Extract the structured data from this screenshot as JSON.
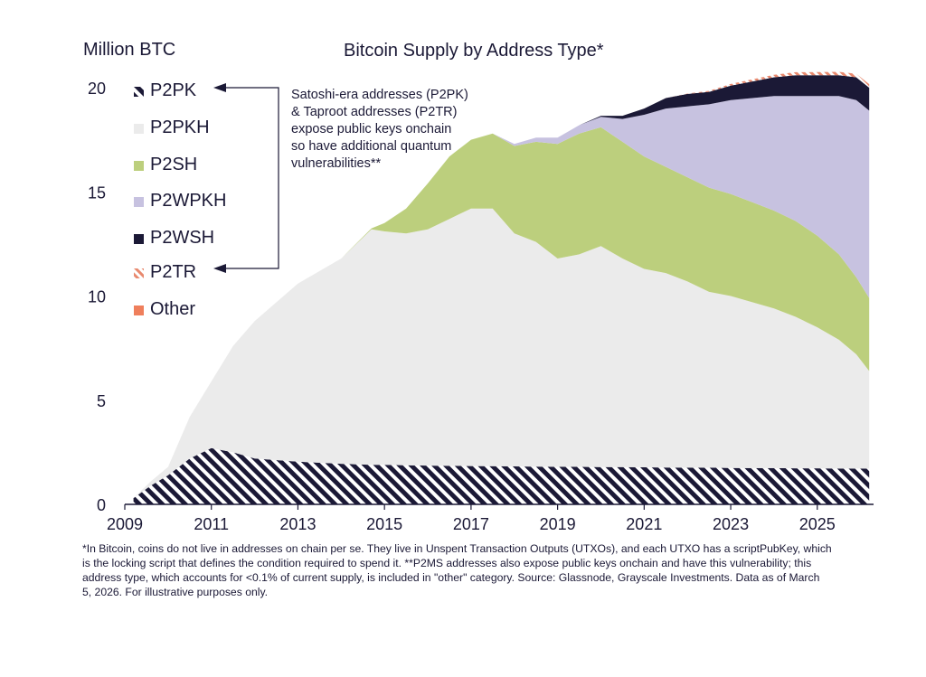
{
  "chart_data": {
    "type": "area",
    "title": "Bitcoin Supply by Address Type*",
    "ylabel": "Million BTC",
    "xlabel": "",
    "ylim": [
      0,
      20
    ],
    "xlim": [
      2009,
      2026.3
    ],
    "y_ticks": [
      "0",
      "5",
      "10",
      "15",
      "20"
    ],
    "x_ticks": [
      "2009",
      "2011",
      "2013",
      "2015",
      "2017",
      "2019",
      "2021",
      "2023",
      "2025"
    ],
    "stacking": "stacked",
    "legend_position": "top-left",
    "grid": false,
    "x": [
      2009.2,
      2009.6,
      2010.0,
      2010.5,
      2011.0,
      2011.5,
      2012.0,
      2013.0,
      2014.0,
      2014.7,
      2015.0,
      2015.5,
      2016.0,
      2016.5,
      2017.0,
      2017.5,
      2018.0,
      2018.5,
      2019.0,
      2019.5,
      2020.0,
      2020.5,
      2021.0,
      2021.5,
      2022.0,
      2022.5,
      2023.0,
      2023.5,
      2024.0,
      2024.5,
      2025.0,
      2025.5,
      2025.9,
      2026.2
    ],
    "series": [
      {
        "name": "P2PK",
        "color": "#1b1936",
        "pattern": "hatch",
        "values": [
          0.3,
          0.9,
          1.4,
          2.2,
          2.7,
          2.5,
          2.2,
          2.05,
          1.95,
          1.9,
          1.9,
          1.88,
          1.86,
          1.85,
          1.84,
          1.83,
          1.82,
          1.81,
          1.8,
          1.8,
          1.79,
          1.79,
          1.78,
          1.77,
          1.76,
          1.76,
          1.75,
          1.74,
          1.74,
          1.73,
          1.73,
          1.72,
          1.72,
          1.72
        ]
      },
      {
        "name": "P2PKH",
        "color": "#ebebeb",
        "values": [
          0.0,
          0.2,
          0.4,
          2.0,
          3.2,
          5.1,
          6.6,
          8.55,
          9.85,
          11.3,
          11.2,
          11.12,
          11.34,
          11.85,
          12.36,
          12.37,
          11.18,
          10.79,
          10.0,
          10.2,
          10.61,
          10.01,
          9.52,
          9.33,
          8.94,
          8.44,
          8.25,
          7.96,
          7.66,
          7.27,
          6.77,
          6.18,
          5.48,
          4.68
        ]
      },
      {
        "name": "P2SH",
        "color": "#bccf7d",
        "values": [
          0.0,
          0.0,
          0.0,
          0.0,
          0.0,
          0.0,
          0.0,
          0.0,
          0.0,
          0.05,
          0.4,
          1.2,
          2.2,
          3.0,
          3.3,
          3.6,
          4.2,
          4.8,
          5.5,
          5.8,
          5.7,
          5.6,
          5.4,
          5.1,
          5.0,
          5.0,
          4.9,
          4.8,
          4.7,
          4.6,
          4.4,
          4.1,
          3.7,
          3.5
        ]
      },
      {
        "name": "P2WPKH",
        "color": "#c7c2e0",
        "values": [
          0,
          0,
          0,
          0,
          0,
          0,
          0,
          0,
          0,
          0,
          0,
          0,
          0,
          0,
          0,
          0,
          0.1,
          0.2,
          0.3,
          0.4,
          0.5,
          1.1,
          2.0,
          2.8,
          3.4,
          4.0,
          4.5,
          5.0,
          5.5,
          6.0,
          6.7,
          7.6,
          8.5,
          9.0
        ]
      },
      {
        "name": "P2WSH",
        "color": "#1b1936",
        "values": [
          0,
          0,
          0,
          0,
          0,
          0,
          0,
          0,
          0,
          0,
          0,
          0,
          0,
          0,
          0,
          0,
          0,
          0,
          0,
          0,
          0.05,
          0.15,
          0.3,
          0.5,
          0.6,
          0.6,
          0.7,
          0.8,
          0.9,
          1.0,
          1.0,
          1.0,
          1.1,
          1.1
        ]
      },
      {
        "name": "P2TR",
        "color": "#e8896e",
        "pattern": "hatch",
        "values": [
          0,
          0,
          0,
          0,
          0,
          0,
          0,
          0,
          0,
          0,
          0,
          0,
          0,
          0,
          0,
          0,
          0,
          0,
          0,
          0,
          0,
          0,
          0,
          0,
          0.02,
          0.05,
          0.08,
          0.1,
          0.12,
          0.14,
          0.15,
          0.16,
          0.17,
          0.17
        ]
      },
      {
        "name": "Other",
        "color": "#ef7f5c",
        "values": [
          0,
          0,
          0,
          0,
          0,
          0,
          0,
          0,
          0,
          0,
          0,
          0,
          0,
          0,
          0,
          0,
          0,
          0,
          0,
          0,
          0,
          0,
          0,
          0,
          0,
          0,
          0,
          0,
          0,
          0,
          0,
          0,
          0,
          0
        ]
      }
    ]
  },
  "annotation": [
    "Satoshi-era addresses (P2PK)",
    "& Taproot addresses (P2TR)",
    "expose public keys onchain",
    "so have additional quantum",
    "vulnerabilities**"
  ],
  "footnote": [
    "*In Bitcoin, coins do not live in addresses on chain per se. They live in Unspent Transaction Outputs (UTXOs), and each UTXO has a scriptPubKey, which",
    "is the locking script that defines the condition required to spend it. **P2MS addresses also expose public keys onchain and have this vulnerability; this",
    "address type, which accounts for <0.1% of current supply, is included in \"other\" category. Source: Glassnode, Grayscale Investments. Data as of March",
    "5, 2026. For illustrative purposes only."
  ]
}
